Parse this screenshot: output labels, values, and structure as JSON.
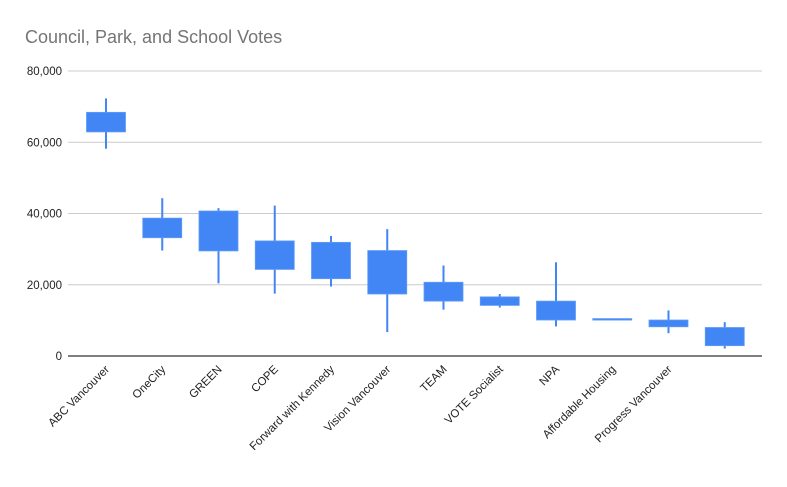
{
  "chart_data": {
    "type": "candlestick",
    "title": "Council, Park, and School Votes",
    "xlabel": "",
    "ylabel": "",
    "ylim": [
      0,
      80000
    ],
    "yticks": [
      0,
      20000,
      40000,
      60000,
      80000
    ],
    "ytick_labels": [
      "0",
      "20,000",
      "40,000",
      "60,000",
      "80,000"
    ],
    "grid": true,
    "legend": "none",
    "series_color": "#4285F4",
    "categories": [
      "ABC Vancouver",
      "OneCity",
      "GREEN",
      "COPE",
      "Forward with Kennedy",
      "Vision Vancouver",
      "TEAM",
      "VOTE Socialist",
      "NPA",
      "Affordable Housing",
      "Progress Vancouver",
      ""
    ],
    "series": [
      {
        "name": "low",
        "values": [
          58200,
          29600,
          20400,
          17500,
          19500,
          6700,
          13000,
          13600,
          8300,
          10300,
          6400,
          2100
        ]
      },
      {
        "name": "box_bottom",
        "values": [
          62900,
          33200,
          29500,
          24300,
          21700,
          17400,
          15400,
          14200,
          10100,
          10300,
          8200,
          2900
        ]
      },
      {
        "name": "box_top",
        "values": [
          68400,
          38700,
          40700,
          32300,
          31900,
          29600,
          20700,
          16600,
          15400,
          10500,
          10100,
          8000
        ]
      },
      {
        "name": "high",
        "values": [
          72300,
          44300,
          41500,
          42200,
          33700,
          35600,
          25400,
          17400,
          26300,
          10500,
          12800,
          9500
        ]
      }
    ]
  }
}
